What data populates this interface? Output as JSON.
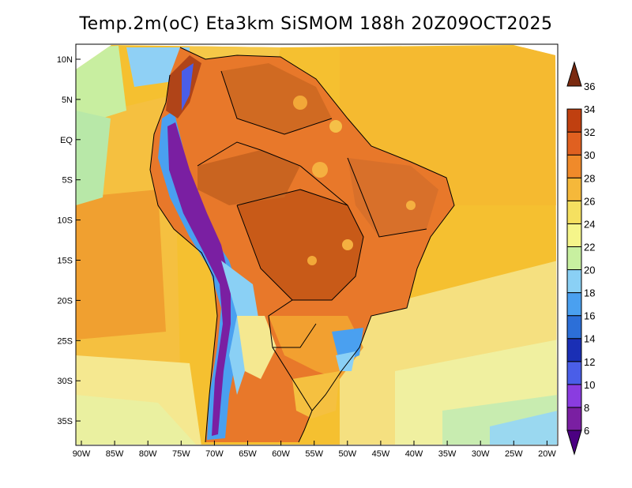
{
  "title": "Temp.2m(oC) Eta3km SiSMOM 188h 20Z09OCT2025",
  "map": {
    "lat_labels": [
      "10N",
      "5N",
      "EQ",
      "5S",
      "10S",
      "15S",
      "20S",
      "25S",
      "30S",
      "35S"
    ],
    "lon_labels": [
      "90W",
      "85W",
      "80W",
      "75W",
      "70W",
      "65W",
      "60W",
      "55W",
      "50W",
      "45W",
      "40W",
      "35W",
      "30W",
      "25W",
      "20W"
    ]
  },
  "colorbar": {
    "labels": [
      "6",
      "8",
      "10",
      "12",
      "14",
      "16",
      "18",
      "20",
      "22",
      "24",
      "26",
      "28",
      "30",
      "32",
      "34",
      "36"
    ],
    "colors": [
      "#4b0082",
      "#7a1fa2",
      "#8a3ce0",
      "#4a5ee8",
      "#1a2fb5",
      "#2c6fd8",
      "#4aa0f0",
      "#8ad0f5",
      "#c8f0a0",
      "#f5f58a",
      "#f5e060",
      "#f5b83a",
      "#f08a2a",
      "#e06020",
      "#c04010",
      "#7a2a10"
    ]
  }
}
